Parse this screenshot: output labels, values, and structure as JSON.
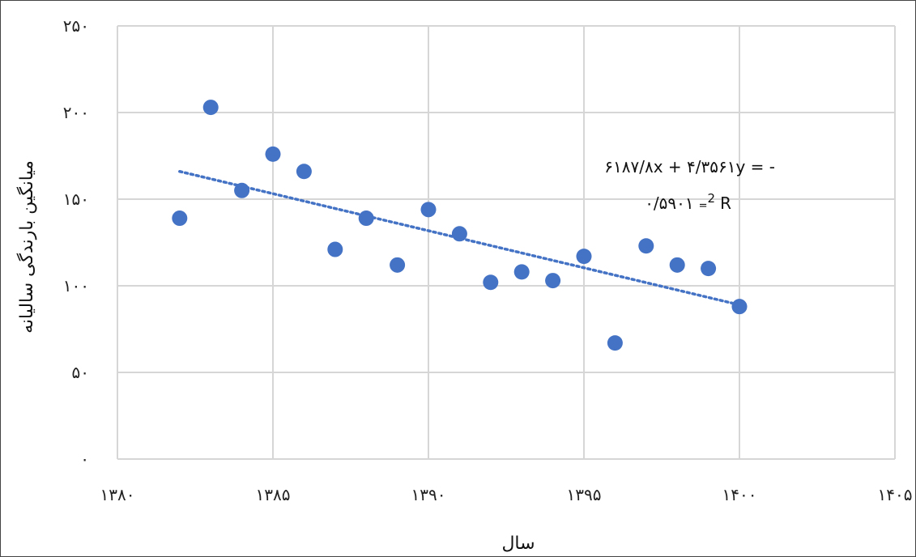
{
  "chart_data": {
    "type": "scatter",
    "title": "",
    "xlabel": "سال",
    "ylabel": "میانگین بارندگی سالیانه",
    "xlim": [
      1380,
      1405
    ],
    "ylim": [
      0,
      250
    ],
    "x_ticks": [
      1380,
      1385,
      1390,
      1395,
      1400,
      1405
    ],
    "y_ticks": [
      0,
      50,
      100,
      150,
      200,
      250
    ],
    "x_tick_labels": [
      "۱۳۸۰",
      "۱۳۸۵",
      "۱۳۹۰",
      "۱۳۹۵",
      "۱۴۰۰",
      "۱۴۰۵"
    ],
    "y_tick_labels": [
      "۰",
      "۵۰",
      "۱۰۰",
      "۱۵۰",
      "۲۰۰",
      "۲۵۰"
    ],
    "grid": true,
    "marker_color": "#4472C4",
    "trendline_color": "#4472C4",
    "series": [
      {
        "x": [
          1382,
          1383,
          1384,
          1385,
          1386,
          1387,
          1388,
          1389,
          1390,
          1391,
          1392,
          1393,
          1394,
          1395,
          1396,
          1397,
          1398,
          1399,
          1400
        ],
        "y": [
          139,
          203,
          155,
          176,
          166,
          121,
          139,
          112,
          144,
          130,
          102,
          108,
          103,
          117,
          67,
          123,
          112,
          110,
          88
        ]
      }
    ],
    "trendline": {
      "x_start": 1382,
      "x_end": 1400,
      "y_start": 166,
      "y_end": 89
    },
    "equation_line1": "۶۱۸۷/۸x + ۴/۳۵۶۱y = -",
    "equation_line2_value": "۰/۵۹۰۱",
    "equation_line2_eq": "=",
    "equation_line2_sup": "2",
    "equation_line2_r": "R"
  }
}
